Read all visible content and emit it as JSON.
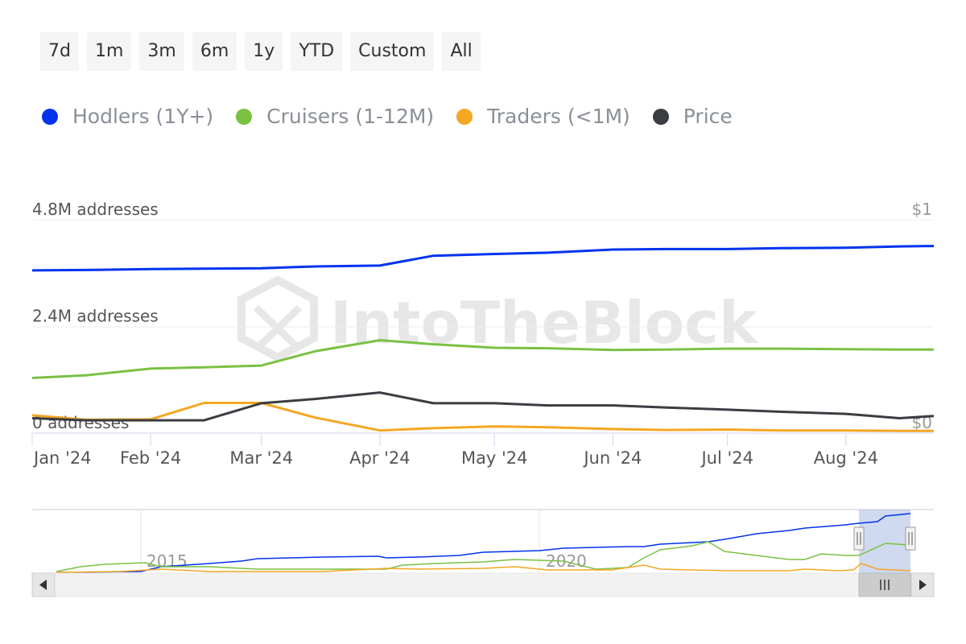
{
  "range_buttons": [
    "7d",
    "1m",
    "3m",
    "6m",
    "1y",
    "YTD",
    "Custom",
    "All"
  ],
  "colors": {
    "hodlers": "#0033ee",
    "cruisers": "#7ac142",
    "traders": "#f5a623",
    "price": "#3a3d42"
  },
  "chart_data": {
    "type": "line",
    "legend": [
      {
        "name": "Hodlers (1Y+)",
        "color": "#0033ee"
      },
      {
        "name": "Cruisers (1-12M)",
        "color": "#7ac142"
      },
      {
        "name": "Traders (<1M)",
        "color": "#f5a623"
      },
      {
        "name": "Price",
        "color": "#3a3d42"
      }
    ],
    "y_left": {
      "ticks": [
        "0 addresses",
        "2.4M addresses",
        "4.8M addresses"
      ],
      "range": [
        0,
        4800000
      ]
    },
    "y_right": {
      "ticks": [
        "$0",
        "$1"
      ],
      "range": [
        0,
        1
      ]
    },
    "x_ticks": [
      "Jan '24",
      "Feb '24",
      "Mar '24",
      "Apr '24",
      "May '24",
      "Jun '24",
      "Jul '24",
      "Aug '24"
    ],
    "x_dates": [
      "2024-01-01",
      "2024-01-15",
      "2024-02-01",
      "2024-02-15",
      "2024-03-01",
      "2024-03-15",
      "2024-04-01",
      "2024-04-15",
      "2024-05-01",
      "2024-05-15",
      "2024-06-01",
      "2024-06-15",
      "2024-07-01",
      "2024-07-15",
      "2024-08-01",
      "2024-08-15",
      "2024-08-24"
    ],
    "series": [
      {
        "name": "Hodlers (1Y+)",
        "values": [
          3660000,
          3670000,
          3690000,
          3700000,
          3710000,
          3750000,
          3770000,
          3990000,
          4030000,
          4060000,
          4130000,
          4140000,
          4140000,
          4160000,
          4170000,
          4200000,
          4210000
        ]
      },
      {
        "name": "Cruisers (1-12M)",
        "values": [
          1240000,
          1300000,
          1450000,
          1480000,
          1520000,
          1840000,
          2090000,
          2000000,
          1920000,
          1910000,
          1870000,
          1880000,
          1900000,
          1900000,
          1890000,
          1880000,
          1880000
        ]
      },
      {
        "name": "Traders (<1M)",
        "values": [
          400000,
          300000,
          310000,
          680000,
          680000,
          350000,
          60000,
          110000,
          150000,
          130000,
          90000,
          70000,
          80000,
          60000,
          60000,
          50000,
          50000
        ]
      },
      {
        "name": "Price",
        "values": [
          0.07,
          0.06,
          0.06,
          0.06,
          0.14,
          0.16,
          0.19,
          0.14,
          0.14,
          0.13,
          0.13,
          0.12,
          0.11,
          0.1,
          0.09,
          0.07,
          0.08
        ]
      }
    ],
    "navigator": {
      "x_ticks": [
        "2015",
        "2020"
      ]
    }
  }
}
